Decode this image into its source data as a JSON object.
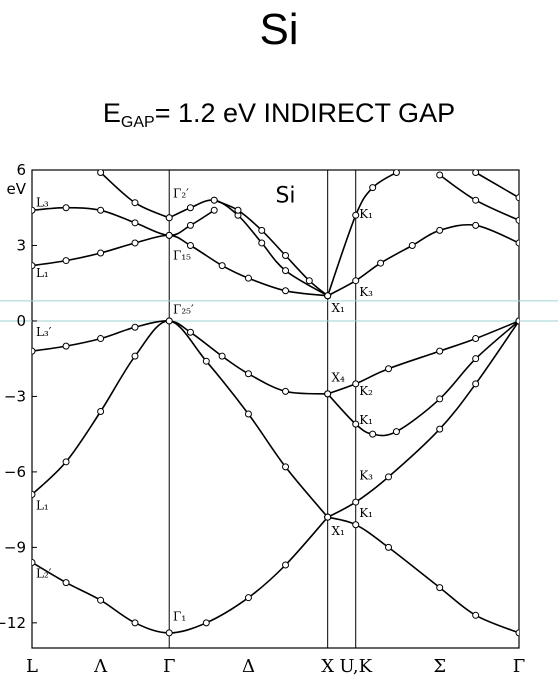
{
  "title": "Si",
  "subtitle": {
    "prefix": "E",
    "sub": "GAP",
    "rest": "= 1.2 eV  INDIRECT GAP"
  },
  "chart_data": {
    "type": "line",
    "title": "Si",
    "ylabel_unit": "eV",
    "ylim": [
      -13,
      6
    ],
    "yticks": [
      6,
      3,
      0,
      -3,
      -6,
      -9,
      -12
    ],
    "x_points": [
      {
        "label": "L",
        "pos": 0
      },
      {
        "label": "Λ",
        "pos": 0.866
      },
      {
        "label": "Γ",
        "pos": 1.732
      },
      {
        "label": "Δ",
        "pos": 2.732
      },
      {
        "label": "X",
        "pos": 3.732
      },
      {
        "label": "U,K",
        "pos": 4.086
      },
      {
        "label": "Σ",
        "pos": 5.146
      },
      {
        "label": "Γ",
        "pos": 6.147
      }
    ],
    "vlines": [
      1.732,
      3.732,
      4.086
    ],
    "hlines": [
      0.8,
      0
    ],
    "series": [
      {
        "points": [
          [
            0,
            -9.6
          ],
          [
            0.43,
            -10.4
          ],
          [
            0.866,
            -11.1
          ],
          [
            1.3,
            -12.0
          ],
          [
            1.732,
            -12.4
          ],
          [
            2.2,
            -12.0
          ],
          [
            2.732,
            -11.0
          ],
          [
            3.2,
            -9.7
          ],
          [
            3.732,
            -7.8
          ]
        ]
      },
      {
        "points": [
          [
            0,
            -6.9
          ],
          [
            0.43,
            -5.6
          ],
          [
            0.866,
            -3.6
          ],
          [
            1.3,
            -1.4
          ],
          [
            1.732,
            0
          ],
          [
            2.2,
            -1.6
          ],
          [
            2.732,
            -3.7
          ],
          [
            3.2,
            -5.8
          ],
          [
            3.732,
            -7.8
          ]
        ]
      },
      {
        "points": [
          [
            0,
            -1.2
          ],
          [
            0.43,
            -1.0
          ],
          [
            0.866,
            -0.7
          ],
          [
            1.3,
            -0.25
          ],
          [
            1.732,
            0
          ],
          [
            2.0,
            -0.45
          ],
          [
            2.4,
            -1.4
          ],
          [
            2.732,
            -2.1
          ],
          [
            3.2,
            -2.8
          ],
          [
            3.732,
            -2.9
          ]
        ]
      },
      {
        "points": [
          [
            0,
            2.2
          ],
          [
            0.43,
            2.4
          ],
          [
            0.866,
            2.7
          ],
          [
            1.3,
            3.1
          ],
          [
            1.732,
            3.4
          ],
          [
            2.0,
            3.0
          ],
          [
            2.4,
            2.2
          ],
          [
            2.732,
            1.7
          ],
          [
            3.2,
            1.2
          ],
          [
            3.732,
            1.0
          ]
        ]
      },
      {
        "points": [
          [
            0,
            4.4
          ],
          [
            0.43,
            4.5
          ],
          [
            0.866,
            4.4
          ],
          [
            1.3,
            3.9
          ],
          [
            1.732,
            3.4
          ],
          [
            2.0,
            3.8
          ],
          [
            2.3,
            4.4
          ]
        ]
      },
      {
        "points": [
          [
            1.732,
            4.1
          ],
          [
            2.0,
            4.5
          ],
          [
            2.3,
            4.8
          ],
          [
            2.6,
            4.2
          ],
          [
            2.9,
            3.1
          ],
          [
            3.2,
            2.0
          ],
          [
            3.732,
            1.0
          ]
        ]
      },
      {
        "points": [
          [
            0.866,
            5.9
          ],
          [
            1.3,
            4.7
          ],
          [
            1.732,
            4.1
          ]
        ]
      },
      {
        "points": [
          [
            2.3,
            4.8
          ],
          [
            2.6,
            4.4
          ],
          [
            2.9,
            3.6
          ],
          [
            3.2,
            2.6
          ],
          [
            3.5,
            1.6
          ],
          [
            3.732,
            1.0
          ]
        ]
      },
      {
        "points": [
          [
            3.732,
            1.0
          ],
          [
            4.086,
            1.6
          ],
          [
            4.4,
            2.3
          ],
          [
            4.8,
            3.0
          ],
          [
            5.146,
            3.6
          ],
          [
            5.6,
            3.8
          ],
          [
            6.147,
            3.1
          ]
        ]
      },
      {
        "points": [
          [
            3.732,
            1.0
          ],
          [
            4.086,
            4.2
          ],
          [
            4.3,
            5.3
          ],
          [
            4.6,
            5.9
          ]
        ]
      },
      {
        "points": [
          [
            3.732,
            -2.9
          ],
          [
            4.086,
            -2.5
          ],
          [
            4.5,
            -1.9
          ],
          [
            5.146,
            -1.2
          ],
          [
            5.6,
            -0.7
          ],
          [
            6.147,
            0
          ]
        ]
      },
      {
        "points": [
          [
            3.732,
            -2.9
          ],
          [
            4.086,
            -4.1
          ],
          [
            4.3,
            -4.5
          ],
          [
            4.6,
            -4.4
          ],
          [
            5.146,
            -3.1
          ],
          [
            5.6,
            -1.5
          ],
          [
            6.147,
            0
          ]
        ]
      },
      {
        "points": [
          [
            3.732,
            -7.8
          ],
          [
            4.086,
            -7.2
          ],
          [
            4.5,
            -6.2
          ],
          [
            5.146,
            -4.3
          ],
          [
            5.6,
            -2.5
          ],
          [
            6.147,
            0
          ]
        ]
      },
      {
        "points": [
          [
            3.732,
            -7.8
          ],
          [
            4.086,
            -8.1
          ],
          [
            4.5,
            -9.0
          ],
          [
            5.146,
            -10.6
          ],
          [
            5.6,
            -11.7
          ],
          [
            6.147,
            -12.4
          ]
        ]
      },
      {
        "points": [
          [
            5.146,
            5.8
          ],
          [
            5.6,
            4.8
          ],
          [
            6.147,
            4.0
          ]
        ]
      },
      {
        "points": [
          [
            5.6,
            5.9
          ],
          [
            6.147,
            4.9
          ]
        ]
      }
    ],
    "point_labels": [
      {
        "text": "L₃",
        "x": 0.05,
        "y": 4.55
      },
      {
        "text": "L₁",
        "x": 0.05,
        "y": 1.75
      },
      {
        "text": "L₃′",
        "x": 0.05,
        "y": -0.6
      },
      {
        "text": "L₁",
        "x": 0.05,
        "y": -7.5
      },
      {
        "text": "L₂′",
        "x": 0.05,
        "y": -10.2
      },
      {
        "text": "Γ₂′",
        "x": 1.78,
        "y": 4.9
      },
      {
        "text": "Γ₁₅",
        "x": 1.78,
        "y": 2.45
      },
      {
        "text": "Γ₂₅′",
        "x": 1.78,
        "y": 0.3
      },
      {
        "text": "Γ₁",
        "x": 1.78,
        "y": -11.9
      },
      {
        "text": "X₁",
        "x": 3.78,
        "y": 0.35
      },
      {
        "text": "X₄",
        "x": 3.78,
        "y": -2.4
      },
      {
        "text": "X₁",
        "x": 3.78,
        "y": -8.5
      },
      {
        "text": "K₁",
        "x": 4.13,
        "y": 4.1
      },
      {
        "text": "K₃",
        "x": 4.13,
        "y": 1.0
      },
      {
        "text": "K₂",
        "x": 4.13,
        "y": -2.95
      },
      {
        "text": "K₁",
        "x": 4.13,
        "y": -4.1
      },
      {
        "text": "K₃",
        "x": 4.13,
        "y": -6.3
      },
      {
        "text": "K₁",
        "x": 4.13,
        "y": -7.8
      }
    ],
    "inner_title": "Si"
  }
}
